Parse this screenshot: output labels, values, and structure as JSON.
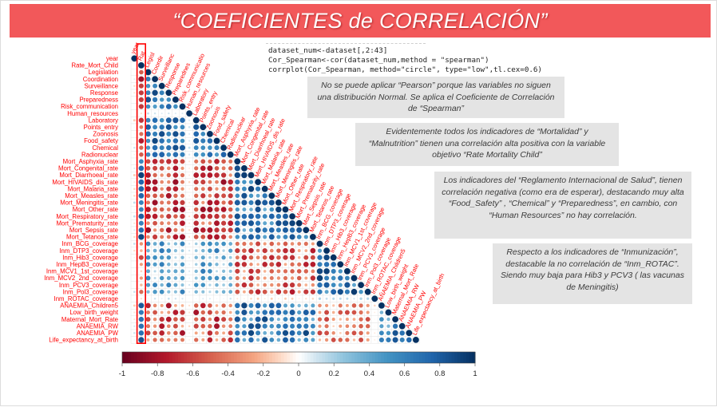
{
  "title": "“COEFICIENTES de CORRELACIÓN”",
  "code_lines": [
    "dataset_num<-dataset[,2:43]",
    "Cor_Spearman<-cor(dataset_num,method = \"spearman\")",
    "corrplot(Cor_Spearman, method=\"circle\", type=\"low\",tl.cex=0.6)"
  ],
  "notes": {
    "note1": "No se puede aplicar “Pearson” porque las variables no siguen una distribución Normal. Se aplica el Coeficiente de Correlación de “Spearman”",
    "note2": "Evidentemente todos los indicadores de “Mortalidad” y “Malnutrition” tienen una correlación alta positiva con la variable objetivo “Rate Mortality Child”",
    "note3": "Los indicadores del “Reglamento Internacional de Salud”, tienen correlación negativa (como era de esperar), destacando muy alta “Food_Safety” , “Chemical” y “Preparedness”, en cambio, con “Human Resources” no hay correlación.",
    "note4": "Respecto a los indicadores de “Inmunización”, destacable la no correlación de “Inm_ROTAC”. Siendo muy baja para Hib3 y PCV3 ( las vacunas de Meningitis)"
  },
  "chart_data": {
    "type": "heatmap",
    "method": "spearman",
    "layout": "lower-triangular circle corrplot",
    "variables": [
      "year",
      "Rate_Mort_Child",
      "Legislation",
      "Coordination",
      "Surveillance",
      "Response",
      "Preparedness",
      "Risk_communication",
      "Human_resources",
      "Laboratory",
      "Points_entry",
      "Zoonosis",
      "Food_safety",
      "Chemical",
      "Radionuclear",
      "Mort_Asphyxia_rate",
      "Mort_Congenital_rate",
      "Mort_Diarrhoeal_rate",
      "Mort_HIVAIDS_dis_rate",
      "Mort_Malaria_rate",
      "Mort_Measles_rate",
      "Mort_Meningitis_rate",
      "Mort_Other_rate",
      "Mort_Respiratory_rate",
      "Mort_Prematurity_rate",
      "Mort_Sepsis_rate",
      "Mort_Tetanos_rate",
      "Inm_BCG_coverage",
      "Inm_DTP3_coverage",
      "Inm_Hib3_coverage",
      "Inm_HepB3_coverage",
      "Inm_MCV1_1st_coverage",
      "Inm_MCV2_2nd_coverage",
      "Inm_PCV3_coverage",
      "Inm_Pol3_coverage",
      "Inm_ROTAC_coverage",
      "AÑAEMIA_Children5",
      "Low_birth_weight",
      "Maternal_Mort_Rate",
      "ANAEMIA_RW",
      "ANAEMIA_PW",
      "Life_expectancy_at_birth"
    ],
    "column_labels": [
      "year",
      "Rat",
      "Legisl",
      "Coordir",
      "Surveillanc",
      "Response",
      "Preparednes",
      "Risk_communicatio",
      "Human_resources",
      "Laboratory",
      "Points_entry",
      "Zoonosis",
      "Food_safety",
      "Chemical",
      "Radionuclear",
      "Mort_Asphyxia_rate",
      "Mort_Congenital_rate",
      "Mort_Diarrhoeal_rate",
      "Mort_HIVAIDS_dis_rate",
      "Mort_Malaria_rate",
      "Mort_Measles_rate",
      "Mort_Meningitis_rate",
      "Mort_Other_rate",
      "Mort_Respiratory_rate",
      "Mort_Prematurity_rate",
      "Mort_Sepsis_rate",
      "Mort_Tetanos_rate",
      "Inm_BCG_coverage",
      "Inm_DTP3_coverage",
      "Inm_Hib3_coverage",
      "Inm_HepB3_coverage",
      "Inm_MCV1_1st_coverage",
      "Inm_MCV2_2nd_coverage",
      "Inm_PCV3_coverage",
      "Inm_Pol3_coverage",
      "Inm_ROTAC_coverage",
      "AÑAEMIA_Children5",
      "Low_birth_weight",
      "Maternal_Mort_Rate",
      "ANAEMIA_RW",
      "ANAEMIA_PW",
      "Life_expectancy_at_birth"
    ],
    "groups": {
      "ihr": [
        2,
        14
      ],
      "mortality": [
        15,
        26
      ],
      "immunization": [
        27,
        35
      ],
      "health": [
        36,
        41
      ]
    },
    "highlighted_column": "Rate_Mort_Child",
    "colorbar_ticks": [
      "-1",
      "-0.8",
      "-0.6",
      "-0.4",
      "-0.2",
      "0",
      "0.2",
      "0.4",
      "0.6",
      "0.8",
      "1"
    ],
    "colors": {
      "negative": "#67001f",
      "neutral": "#ffffff",
      "positive": "#053061",
      "highlight": "#ff0000"
    }
  }
}
